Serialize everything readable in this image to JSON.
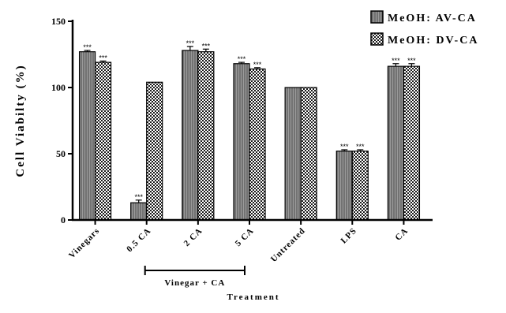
{
  "chart_data": {
    "type": "bar",
    "title": "",
    "xlabel": "Treatment",
    "ylabel": "Cell Viabilty (%)",
    "ylim": [
      0,
      150
    ],
    "yticks": [
      "0",
      "50",
      "100",
      "150"
    ],
    "categories": [
      "Vinegars",
      "0.5 CA",
      "2 CA",
      "5 CA",
      "Untreated",
      "LPS",
      "CA"
    ],
    "series": [
      {
        "name": "MeOH: AV-CA",
        "pattern": "vertical-lines",
        "values": [
          127,
          13,
          128,
          118,
          100,
          52,
          116
        ],
        "errors": [
          1,
          2,
          3,
          1,
          0,
          1,
          2
        ],
        "significance": [
          "***",
          "***",
          "***",
          "***",
          "",
          "***",
          "***"
        ]
      },
      {
        "name": "MeOH: DV-CA",
        "pattern": "checker",
        "values": [
          119,
          104,
          127,
          114,
          100,
          52,
          116
        ],
        "errors": [
          1,
          0,
          2,
          1,
          0,
          1,
          2
        ],
        "significance": [
          "***",
          "",
          "***",
          "***",
          "",
          "***",
          "***"
        ]
      }
    ],
    "group_bracket": {
      "label": "Vinegar + CA",
      "from_category": "0.5 CA",
      "to_category": "5 CA"
    },
    "legend_position": "top-right",
    "colors": {
      "bar_fill": "#8c8c8c",
      "stroke": "#000000",
      "background": "#ffffff"
    }
  }
}
